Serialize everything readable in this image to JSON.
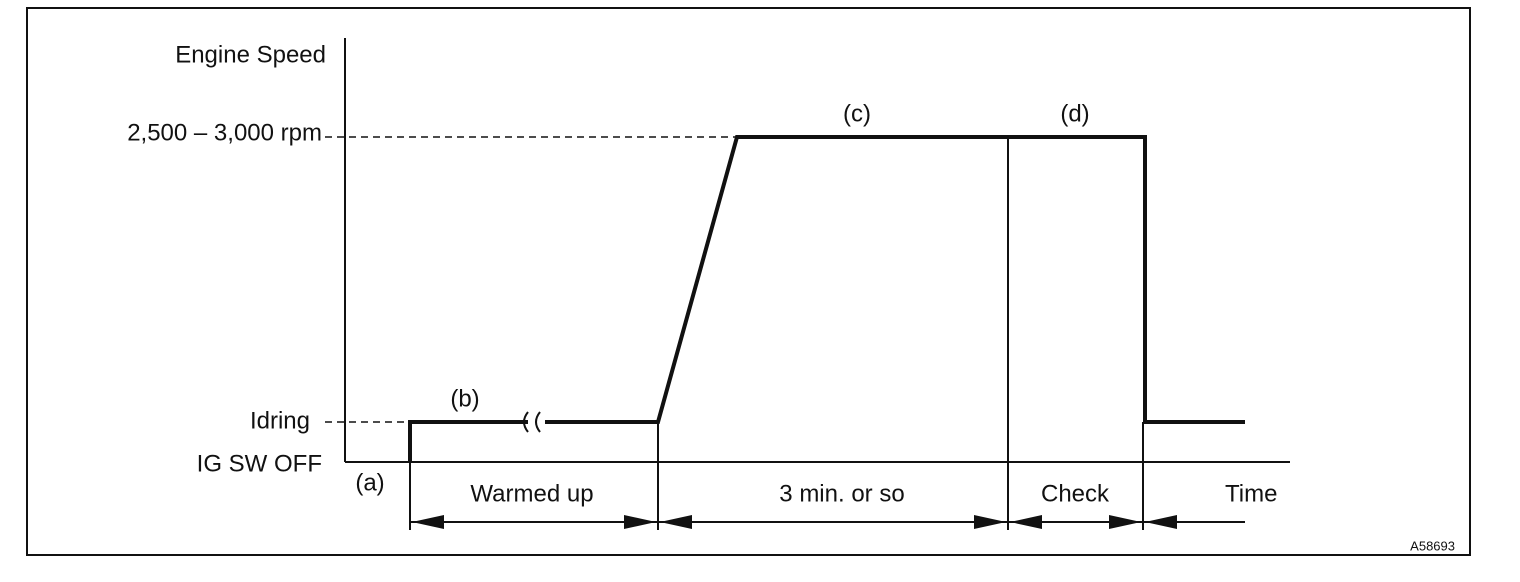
{
  "axis": {
    "y_label": "Engine Speed",
    "high_level": "2,500 – 3,000 rpm",
    "idle_level": "Idring",
    "off_level": "IG SW OFF",
    "x_label": "Time"
  },
  "points": {
    "a": "(a)",
    "b": "(b)",
    "c": "(c)",
    "d": "(d)"
  },
  "phases": [
    "Warmed up",
    "3 min. or so",
    "Check"
  ],
  "figure_id": "A58693"
}
